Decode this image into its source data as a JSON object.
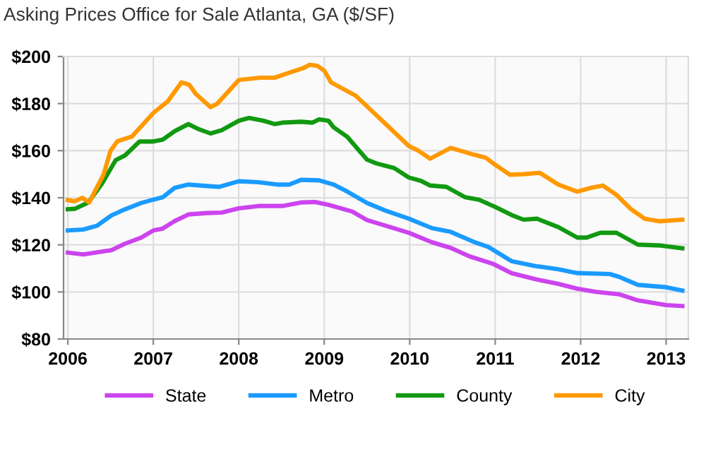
{
  "chart_data": {
    "type": "line",
    "title": "Asking Prices Office for Sale Atlanta, GA ($/SF)",
    "xlim": [
      2005.95,
      2013.26
    ],
    "xticks": [
      2006,
      2007,
      2008,
      2009,
      2010,
      2011,
      2012,
      2013
    ],
    "ylim": [
      80,
      200
    ],
    "yticks": [
      {
        "value": 80,
        "label": "$80"
      },
      {
        "value": 100,
        "label": "$100"
      },
      {
        "value": 120,
        "label": "$120"
      },
      {
        "value": 140,
        "label": "$140"
      },
      {
        "value": 160,
        "label": "$160"
      },
      {
        "value": 180,
        "label": "$180"
      },
      {
        "value": 200,
        "label": "$200"
      }
    ],
    "grid": true,
    "legend": "bottom",
    "marker": "none",
    "line_style": "solid",
    "series": [
      {
        "name": "State",
        "color": "#cc44ee",
        "x": [
          2006.0,
          2006.18,
          2006.4,
          2006.51,
          2006.67,
          2006.86,
          2007.0,
          2007.11,
          2007.25,
          2007.41,
          2007.63,
          2007.8,
          2008.0,
          2008.23,
          2008.51,
          2008.73,
          2008.89,
          2009.05,
          2009.33,
          2009.5,
          2009.72,
          2009.99,
          2010.26,
          2010.48,
          2010.7,
          2010.97,
          2011.19,
          2011.47,
          2011.74,
          2011.96,
          2012.18,
          2012.45,
          2012.67,
          2013.0,
          2013.19
        ],
        "values": [
          116.7,
          115.9,
          117.1,
          117.7,
          120.5,
          123.1,
          126.1,
          126.9,
          130.1,
          132.9,
          133.5,
          133.7,
          135.5,
          136.5,
          136.5,
          138.0,
          138.2,
          137.0,
          134.1,
          130.5,
          128.1,
          125.1,
          121.1,
          118.7,
          115.1,
          112.0,
          108.0,
          105.4,
          103.4,
          101.4,
          100.0,
          99.0,
          96.4,
          94.4,
          94.0
        ]
      },
      {
        "name": "Metro",
        "color": "#1a9bff",
        "x": [
          2006.0,
          2006.18,
          2006.34,
          2006.51,
          2006.67,
          2006.86,
          2007.0,
          2007.11,
          2007.25,
          2007.41,
          2007.63,
          2007.77,
          2008.0,
          2008.23,
          2008.45,
          2008.59,
          2008.73,
          2008.94,
          2009.11,
          2009.27,
          2009.5,
          2009.72,
          2009.99,
          2010.26,
          2010.48,
          2010.76,
          2010.92,
          2011.19,
          2011.47,
          2011.74,
          2011.96,
          2012.34,
          2012.45,
          2012.67,
          2013.0,
          2013.19
        ],
        "values": [
          126.1,
          126.5,
          128.1,
          132.5,
          135.1,
          137.8,
          139.2,
          140.2,
          144.2,
          145.6,
          145.0,
          144.6,
          147.0,
          146.6,
          145.6,
          145.6,
          147.6,
          147.4,
          145.6,
          142.6,
          137.8,
          134.5,
          131.1,
          127.1,
          125.5,
          121.1,
          119.1,
          113.1,
          111.0,
          109.6,
          108.0,
          107.6,
          106.4,
          103.0,
          102.0,
          100.6
        ]
      },
      {
        "name": "County",
        "color": "#119911",
        "x": [
          2006.0,
          2006.08,
          2006.24,
          2006.4,
          2006.56,
          2006.67,
          2006.84,
          2007.0,
          2007.11,
          2007.25,
          2007.41,
          2007.52,
          2007.67,
          2007.8,
          2008.0,
          2008.12,
          2008.29,
          2008.42,
          2008.51,
          2008.73,
          2008.86,
          2008.94,
          2009.05,
          2009.11,
          2009.27,
          2009.33,
          2009.5,
          2009.61,
          2009.82,
          2009.99,
          2010.13,
          2010.24,
          2010.43,
          2010.65,
          2010.81,
          2011.0,
          2011.19,
          2011.33,
          2011.49,
          2011.74,
          2011.96,
          2012.07,
          2012.23,
          2012.42,
          2012.67,
          2012.94,
          2013.19
        ],
        "values": [
          135.1,
          135.3,
          138.0,
          146.0,
          156.0,
          158.0,
          163.9,
          163.9,
          164.7,
          168.3,
          171.3,
          169.3,
          167.3,
          168.7,
          172.7,
          173.9,
          172.7,
          171.3,
          171.9,
          172.3,
          171.9,
          173.3,
          172.7,
          169.9,
          165.9,
          163.3,
          156.2,
          154.6,
          152.6,
          148.6,
          147.2,
          145.2,
          144.6,
          140.2,
          139.2,
          136.1,
          132.7,
          130.7,
          131.1,
          127.5,
          123.1,
          123.1,
          125.1,
          125.1,
          120.1,
          119.7,
          118.5
        ]
      },
      {
        "name": "City",
        "color": "#ff9900",
        "x": [
          2006.0,
          2006.08,
          2006.17,
          2006.25,
          2006.42,
          2006.5,
          2006.58,
          2006.75,
          2007.0,
          2007.17,
          2007.33,
          2007.42,
          2007.5,
          2007.67,
          2007.75,
          2008.0,
          2008.25,
          2008.42,
          2008.58,
          2008.75,
          2008.83,
          2008.92,
          2009.0,
          2009.08,
          2009.37,
          2009.72,
          2009.99,
          2010.1,
          2010.24,
          2010.48,
          2010.76,
          2010.89,
          2011.0,
          2011.17,
          2011.33,
          2011.52,
          2011.74,
          2011.96,
          2012.12,
          2012.26,
          2012.42,
          2012.59,
          2012.75,
          2012.92,
          2013.19
        ],
        "values": [
          139.0,
          138.5,
          140.0,
          138.0,
          150.0,
          160.0,
          164.0,
          166.0,
          176.0,
          181.0,
          189.0,
          188.0,
          184.0,
          178.5,
          180.0,
          190.0,
          191.0,
          191.0,
          193.0,
          195.0,
          196.5,
          196.0,
          194.0,
          189.0,
          183.3,
          171.3,
          162.0,
          160.0,
          156.6,
          161.2,
          158.2,
          157.0,
          154.0,
          149.8,
          150.0,
          150.6,
          145.6,
          142.6,
          144.2,
          145.2,
          141.2,
          135.1,
          131.1,
          130.0,
          130.7
        ]
      }
    ]
  }
}
